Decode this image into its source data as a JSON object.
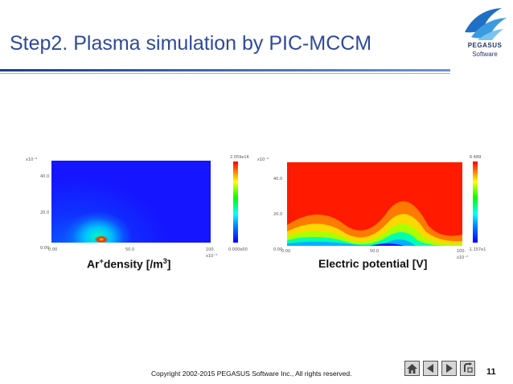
{
  "slide": {
    "title": "Step2. Plasma simulation by PIC-MCCM",
    "copyright": "Copyright 2002-2015 PEGASUS Software Inc., All rights reserved.",
    "page_number": "11"
  },
  "logo": {
    "line1": "PEGASUS",
    "line2": "Software"
  },
  "figures": [
    {
      "caption_pre": "Ar",
      "caption_sup1": "+",
      "caption_mid": "density [/m",
      "caption_sup2": "3",
      "caption_post": "]",
      "y_exp": "x10⁻³",
      "y_ticks": [
        "40.0",
        "20.0",
        "0.00"
      ],
      "x_ticks": [
        "0.00",
        "50.0",
        "100."
      ],
      "x_exp": "x10⁻³",
      "cbar_max": "2.059e16",
      "cbar_min": "0.000e00",
      "colors": {
        "field_bg": "#1515ff",
        "hot": "#ff2000"
      }
    },
    {
      "caption": "Electric potential [V]",
      "y_exp": "x10⁻³",
      "y_ticks": [
        "40.0",
        "20.0",
        "0.00"
      ],
      "x_ticks": [
        "0.00",
        "50.0",
        "100."
      ],
      "x_exp": "x10⁻³",
      "cbar_max": "6.489",
      "cbar_min": "-1.157e1",
      "colors": {
        "field_bg": "#ff1a00",
        "low": "#1515ff"
      }
    }
  ],
  "nav": {
    "home_icon": "home-icon",
    "back_icon": "triangle-left-icon",
    "forward_icon": "triangle-right-icon",
    "return_icon": "return-arrow-icon"
  }
}
